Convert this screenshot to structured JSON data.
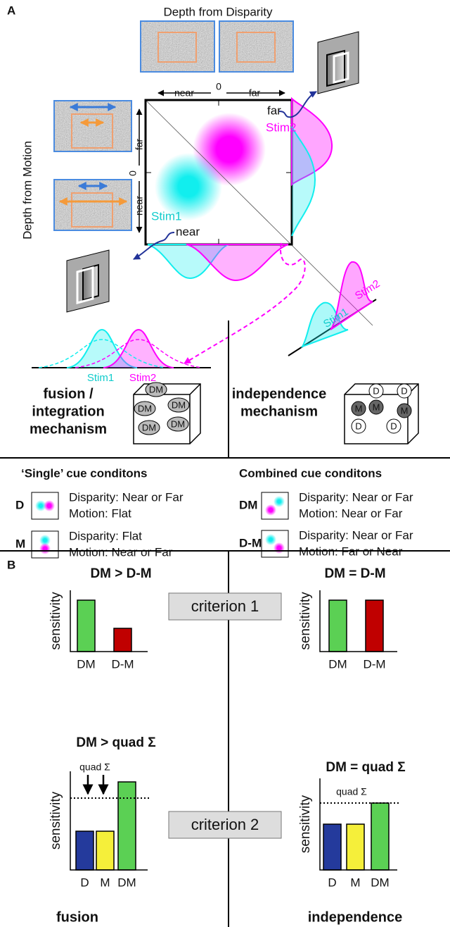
{
  "panel_a": {
    "label": "A",
    "disparity_title": "Depth from Disparity",
    "motion_title": "Depth from Motion",
    "x_axis": [
      "near",
      "0",
      "far"
    ],
    "y_axis": [
      "near",
      "0",
      "far"
    ],
    "far_callout": "far",
    "near_callout": "near",
    "stim_labels": [
      "Stim1",
      "Stim2"
    ],
    "fusion": {
      "title_lines": [
        "fusion /",
        "integration",
        "mechanism"
      ],
      "cube_labels": [
        "DM",
        "DM",
        "DM",
        "DM",
        "DM"
      ]
    },
    "independence": {
      "title_lines": [
        "independence",
        "mechanism"
      ],
      "cube_labels": [
        "D",
        "D",
        "M",
        "M",
        "M",
        "D",
        "D"
      ]
    }
  },
  "conditions": {
    "single_title": "‘Single’ cue conditons",
    "combined_title": "Combined cue conditons",
    "rows": [
      {
        "code": "D",
        "lines": [
          "Disparity: Near or Far",
          "Motion: Flat"
        ]
      },
      {
        "code": "M",
        "lines": [
          "Disparity: Flat",
          "Motion: Near or Far"
        ]
      },
      {
        "code": "DM",
        "lines": [
          "Disparity: Near or Far",
          "Motion: Near or Far"
        ]
      },
      {
        "code": "D-M",
        "lines": [
          "Disparity: Near or Far",
          "Motion: Far or Near"
        ]
      }
    ]
  },
  "panel_b": {
    "label": "B",
    "criteria": [
      "criterion 1",
      "criterion 2"
    ],
    "ylabel": "sensitivity",
    "charts": [
      {
        "title": "DM > D-M",
        "categories": [
          "DM",
          "D-M"
        ]
      },
      {
        "title": "DM = D-M",
        "categories": [
          "DM",
          "D-M"
        ]
      },
      {
        "title": "DM > quad Σ",
        "categories": [
          "D",
          "M",
          "DM"
        ],
        "threshold_label": "quad Σ"
      },
      {
        "title": "DM = quad Σ",
        "categories": [
          "D",
          "M",
          "DM"
        ],
        "threshold_label": "quad Σ"
      }
    ],
    "footers": [
      "fusion",
      "independence"
    ]
  }
}
